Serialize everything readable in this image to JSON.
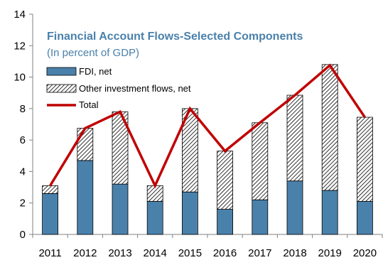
{
  "colors": {
    "fdi": "#4a81ab",
    "other_hatch": "#000000",
    "total": "#c00000",
    "title": "#4a81ab",
    "axis": "#808080"
  },
  "chart_data": {
    "type": "bar",
    "stacked": true,
    "title": "Financial Account Flows-Selected Components",
    "subtitle": "(In percent of GDP)",
    "xlabel": "",
    "ylabel": "",
    "ylim": [
      0,
      14
    ],
    "yticks": [
      0,
      2,
      4,
      6,
      8,
      10,
      12,
      14
    ],
    "categories": [
      "2011",
      "2012",
      "2013",
      "2014",
      "2015",
      "2016",
      "2017",
      "2018",
      "2019",
      "2020"
    ],
    "series": [
      {
        "name": "FDI, net",
        "kind": "bar",
        "values": [
          2.6,
          4.7,
          3.2,
          2.1,
          2.7,
          1.6,
          2.2,
          3.4,
          2.8,
          2.1
        ]
      },
      {
        "name": "Other investment flows, net",
        "kind": "bar-hatched",
        "values": [
          0.5,
          2.05,
          4.6,
          1.0,
          5.3,
          3.7,
          4.9,
          5.45,
          8.0,
          5.35
        ]
      },
      {
        "name": "Total",
        "kind": "line",
        "values": [
          3.1,
          6.75,
          7.8,
          3.1,
          8.0,
          5.3,
          7.1,
          8.85,
          10.75,
          7.45
        ]
      }
    ],
    "grid": false,
    "legend_position": "top-left"
  }
}
